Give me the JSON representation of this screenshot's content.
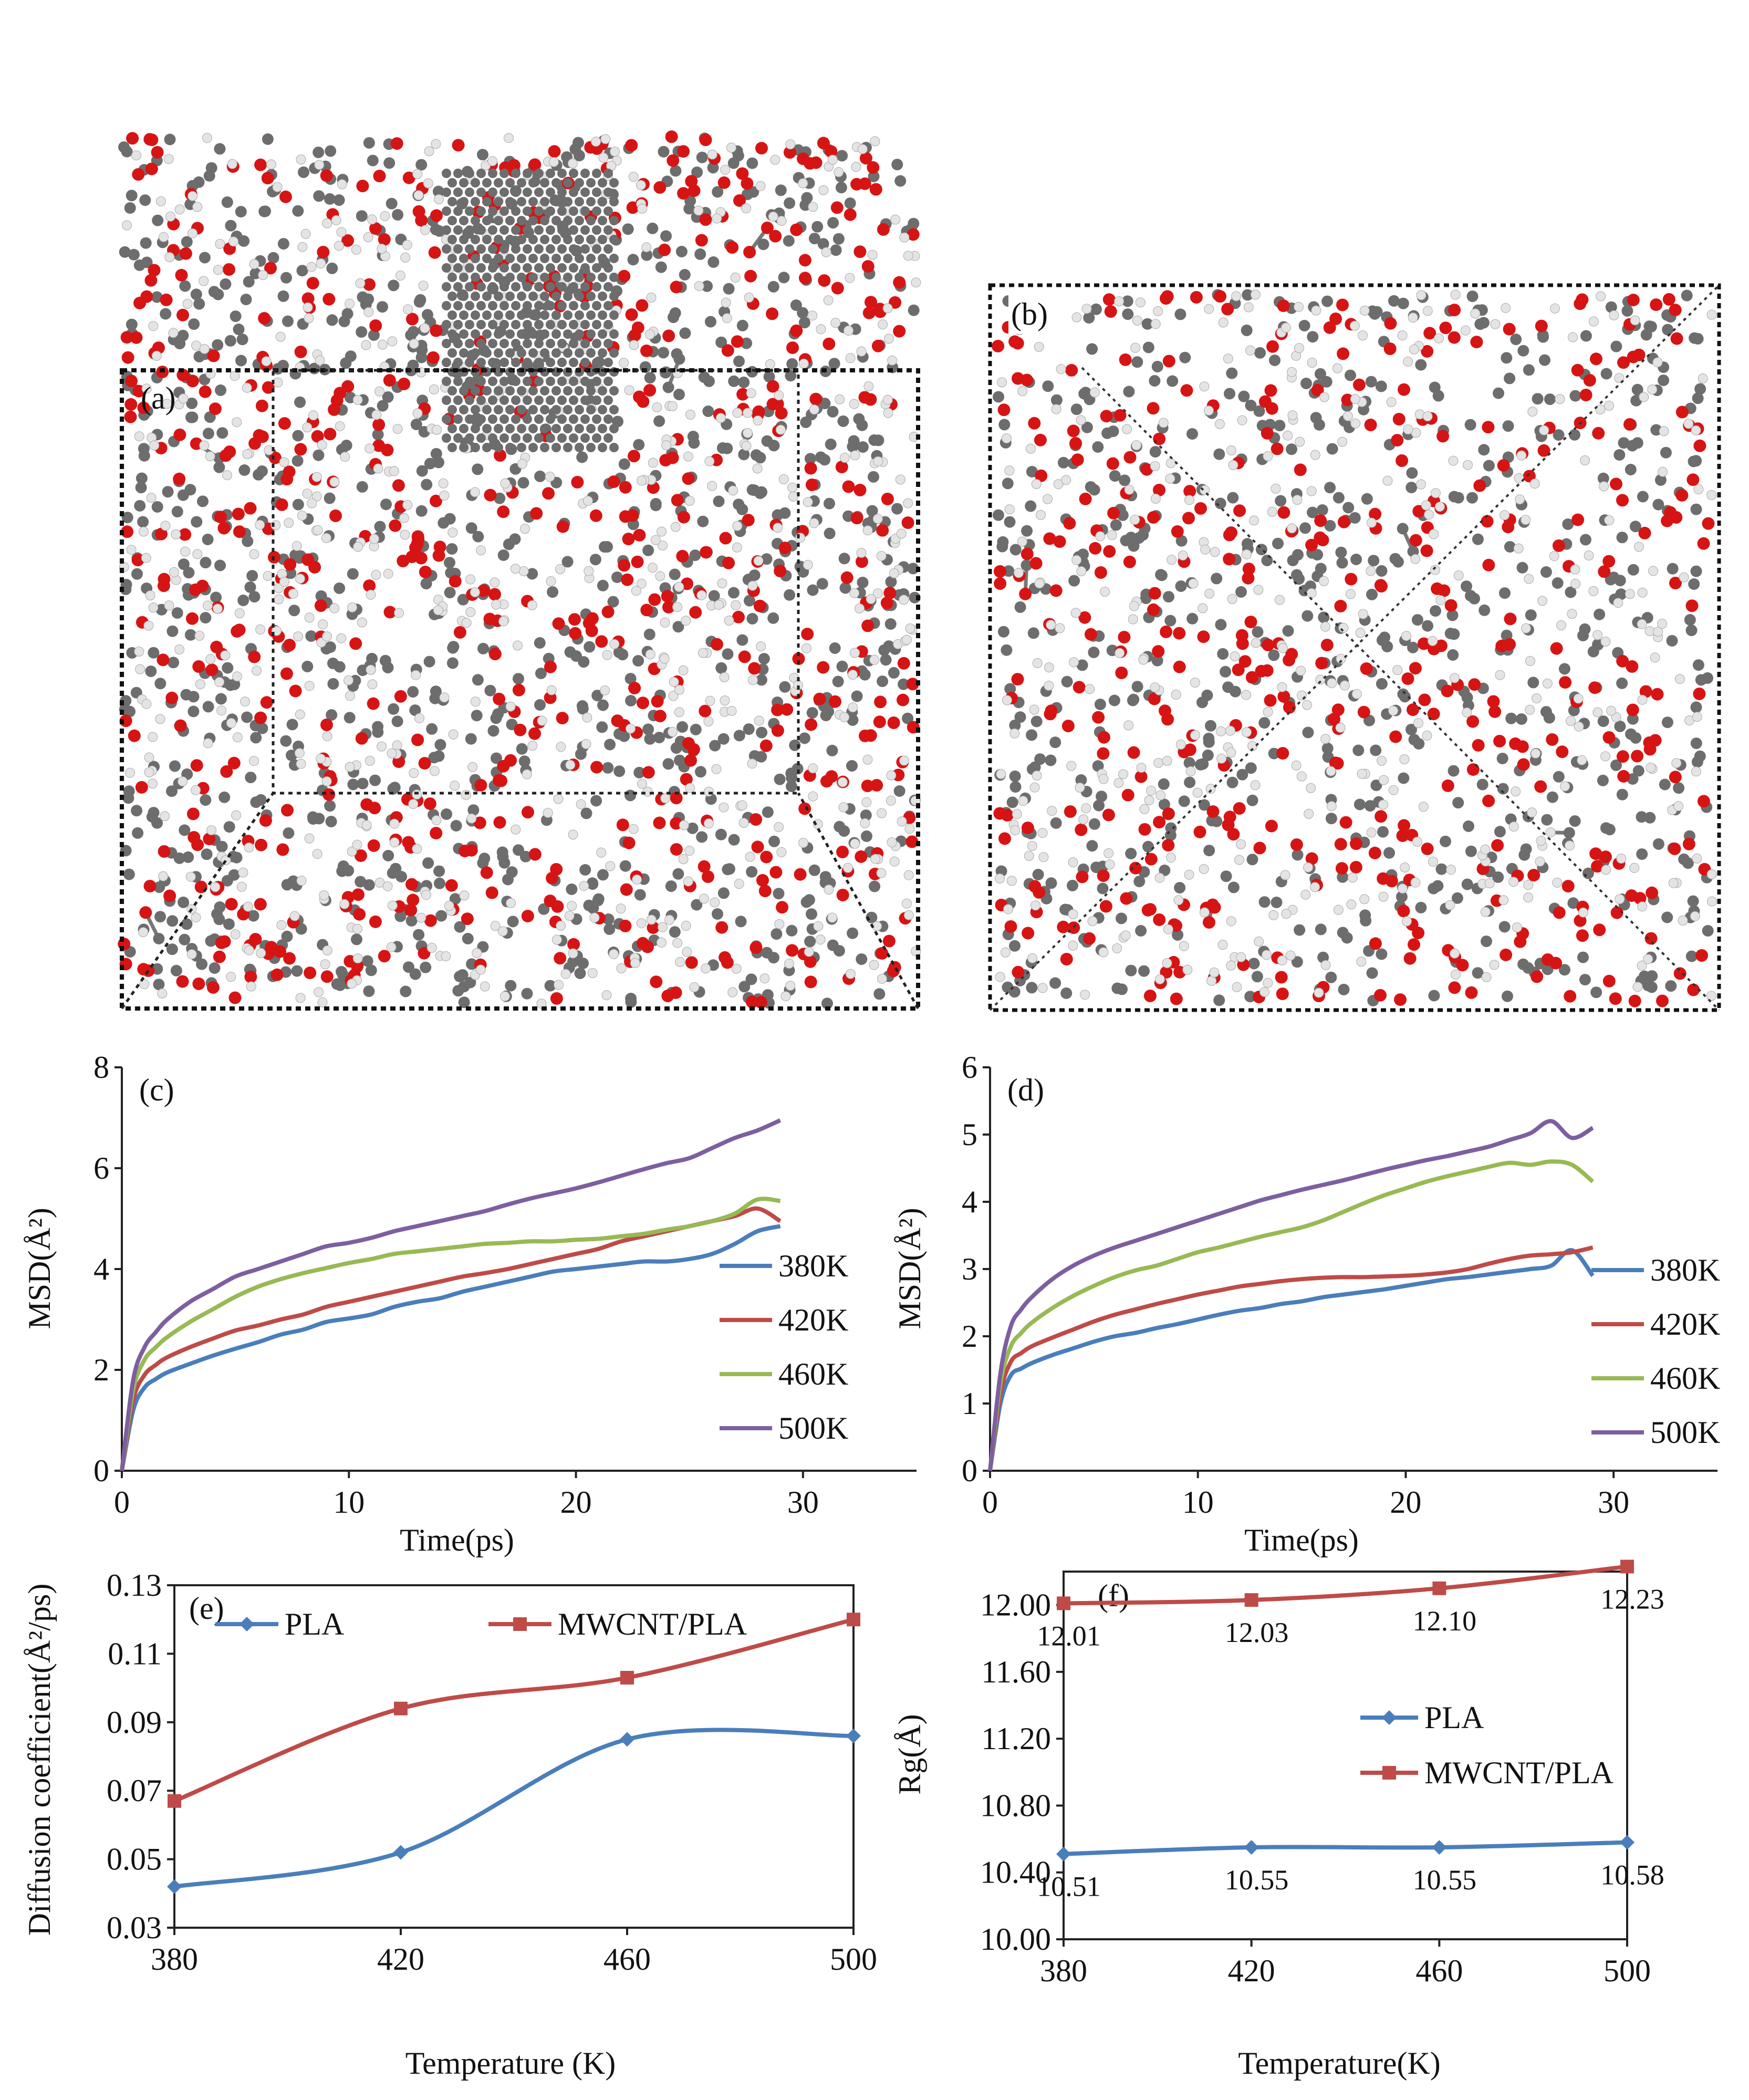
{
  "figure": {
    "panel_a_label": "(a)",
    "panel_b_label": "(b)",
    "panel_a_subject": "MWCNT/PLA molecular model",
    "panel_b_subject": "PLA molecular model"
  },
  "colors": {
    "carbon": "#6d6d6d",
    "oxygen": "#d71414",
    "hydrogen": "#e4e4e4",
    "series_380K": "#4a7ebb",
    "series_420K": "#be4b48",
    "series_460K": "#98b954",
    "series_500K": "#7d5fa0",
    "series_PLA": "#4a7ebb",
    "series_MWCNT_PLA": "#be4b48"
  },
  "chart_data": [
    {
      "id": "c",
      "type": "line",
      "panel_label": "(c)",
      "xlabel": "Time(ps)",
      "ylabel": "MSD(Å²)",
      "xlim": [
        0,
        35
      ],
      "ylim": [
        0,
        8
      ],
      "xticks": [
        0,
        10,
        20,
        30
      ],
      "yticks": [
        0,
        2,
        4,
        6,
        8
      ],
      "x": [
        0,
        0.5,
        1,
        1.5,
        2,
        3,
        4,
        5,
        6,
        7,
        8,
        9,
        10,
        11,
        12,
        13,
        14,
        15,
        16,
        17,
        18,
        19,
        20,
        21,
        22,
        23,
        24,
        25,
        26,
        27,
        28,
        29
      ],
      "series": [
        {
          "name": "380K",
          "values": [
            0,
            1.2,
            1.65,
            1.82,
            1.95,
            2.12,
            2.28,
            2.42,
            2.55,
            2.7,
            2.8,
            2.95,
            3.02,
            3.1,
            3.25,
            3.35,
            3.42,
            3.55,
            3.65,
            3.75,
            3.85,
            3.95,
            4.0,
            4.05,
            4.1,
            4.15,
            4.15,
            4.2,
            4.3,
            4.5,
            4.75,
            4.85
          ]
        },
        {
          "name": "420K",
          "values": [
            0,
            1.4,
            1.9,
            2.1,
            2.25,
            2.45,
            2.62,
            2.78,
            2.88,
            3.0,
            3.1,
            3.25,
            3.35,
            3.45,
            3.55,
            3.65,
            3.75,
            3.85,
            3.92,
            4.0,
            4.1,
            4.2,
            4.3,
            4.4,
            4.55,
            4.65,
            4.75,
            4.85,
            4.95,
            5.05,
            5.2,
            4.95
          ]
        },
        {
          "name": "460K",
          "values": [
            0,
            1.6,
            2.2,
            2.45,
            2.65,
            2.95,
            3.2,
            3.45,
            3.65,
            3.8,
            3.92,
            4.02,
            4.12,
            4.2,
            4.3,
            4.35,
            4.4,
            4.45,
            4.5,
            4.52,
            4.55,
            4.55,
            4.58,
            4.6,
            4.65,
            4.7,
            4.78,
            4.85,
            4.95,
            5.1,
            5.38,
            5.35
          ]
        },
        {
          "name": "500K",
          "values": [
            0,
            1.8,
            2.45,
            2.75,
            3.0,
            3.35,
            3.6,
            3.85,
            4.0,
            4.15,
            4.3,
            4.45,
            4.52,
            4.62,
            4.75,
            4.85,
            4.95,
            5.05,
            5.15,
            5.28,
            5.4,
            5.5,
            5.6,
            5.72,
            5.85,
            5.98,
            6.1,
            6.2,
            6.4,
            6.6,
            6.75,
            6.95
          ]
        }
      ],
      "legend": [
        "380K",
        "420K",
        "460K",
        "500K"
      ],
      "legend_position": "right"
    },
    {
      "id": "d",
      "type": "line",
      "panel_label": "(d)",
      "xlabel": "Time(ps)",
      "ylabel": "MSD(Å²)",
      "xlim": [
        0,
        35
      ],
      "ylim": [
        0,
        6
      ],
      "xticks": [
        0,
        10,
        20,
        30
      ],
      "yticks": [
        0,
        1,
        2,
        3,
        4,
        5,
        6
      ],
      "x": [
        0,
        0.5,
        1,
        1.5,
        2,
        3,
        4,
        5,
        6,
        7,
        8,
        9,
        10,
        11,
        12,
        13,
        14,
        15,
        16,
        17,
        18,
        19,
        20,
        21,
        22,
        23,
        24,
        25,
        26,
        27,
        28,
        29
      ],
      "series": [
        {
          "name": "380K",
          "values": [
            0,
            1.0,
            1.42,
            1.52,
            1.6,
            1.72,
            1.82,
            1.92,
            2.0,
            2.05,
            2.12,
            2.18,
            2.25,
            2.32,
            2.38,
            2.42,
            2.48,
            2.52,
            2.58,
            2.62,
            2.66,
            2.7,
            2.75,
            2.8,
            2.85,
            2.88,
            2.92,
            2.96,
            3.0,
            3.05,
            3.28,
            2.9
          ]
        },
        {
          "name": "420K",
          "values": [
            0,
            1.15,
            1.62,
            1.75,
            1.85,
            1.98,
            2.1,
            2.22,
            2.32,
            2.4,
            2.48,
            2.55,
            2.62,
            2.68,
            2.74,
            2.78,
            2.82,
            2.85,
            2.87,
            2.88,
            2.88,
            2.89,
            2.9,
            2.92,
            2.95,
            3.0,
            3.08,
            3.15,
            3.2,
            3.22,
            3.25,
            3.32
          ]
        },
        {
          "name": "460K",
          "values": [
            0,
            1.3,
            1.85,
            2.05,
            2.2,
            2.42,
            2.6,
            2.75,
            2.88,
            2.98,
            3.05,
            3.15,
            3.25,
            3.32,
            3.4,
            3.48,
            3.55,
            3.62,
            3.72,
            3.85,
            3.98,
            4.1,
            4.2,
            4.3,
            4.38,
            4.45,
            4.52,
            4.58,
            4.55,
            4.6,
            4.55,
            4.3
          ]
        },
        {
          "name": "500K",
          "values": [
            0,
            1.45,
            2.15,
            2.4,
            2.58,
            2.85,
            3.05,
            3.2,
            3.32,
            3.42,
            3.52,
            3.62,
            3.72,
            3.82,
            3.92,
            4.02,
            4.1,
            4.18,
            4.25,
            4.32,
            4.4,
            4.48,
            4.55,
            4.62,
            4.68,
            4.75,
            4.82,
            4.92,
            5.02,
            5.2,
            4.95,
            5.1
          ]
        }
      ],
      "legend": [
        "380K",
        "420K",
        "460K",
        "500K"
      ],
      "legend_position": "right"
    },
    {
      "id": "e",
      "type": "line",
      "panel_label": "(e)",
      "xlabel": "Temperature (K)",
      "ylabel": "Diffusion coefficient(Å²/ps)",
      "xlim": [
        380,
        500
      ],
      "ylim": [
        0.03,
        0.13
      ],
      "xticks": [
        380,
        420,
        460,
        500
      ],
      "yticks": [
        0.03,
        0.05,
        0.07,
        0.09,
        0.11,
        0.13
      ],
      "ytick_labels": [
        "0.03",
        "0.05",
        "0.07",
        "0.09",
        "0.11",
        "0.13"
      ],
      "categories": [
        380,
        420,
        460,
        500
      ],
      "series": [
        {
          "name": "PLA",
          "marker": "diamond",
          "values": [
            0.042,
            0.052,
            0.085,
            0.086
          ]
        },
        {
          "name": "MWCNT/PLA",
          "marker": "square",
          "values": [
            0.067,
            0.094,
            0.103,
            0.12
          ]
        }
      ],
      "legend": [
        "PLA",
        "MWCNT/PLA"
      ],
      "legend_position": "top"
    },
    {
      "id": "f",
      "type": "line",
      "panel_label": "(f)",
      "xlabel": "Temperature(K)",
      "ylabel": "Rg(Å)",
      "xlim": [
        380,
        500
      ],
      "ylim": [
        10.0,
        12.2
      ],
      "xticks": [
        380,
        420,
        460,
        500
      ],
      "yticks": [
        10.0,
        10.4,
        10.8,
        11.2,
        11.6,
        12.0
      ],
      "ytick_labels": [
        "10.00",
        "10.40",
        "10.80",
        "11.20",
        "11.60",
        "12.00"
      ],
      "categories": [
        380,
        420,
        460,
        500
      ],
      "series": [
        {
          "name": "PLA",
          "marker": "diamond",
          "values": [
            10.51,
            10.55,
            10.55,
            10.58
          ],
          "data_labels": [
            "10.51",
            "10.55",
            "10.55",
            "10.58"
          ]
        },
        {
          "name": "MWCNT/PLA",
          "marker": "square",
          "values": [
            12.01,
            12.03,
            12.1,
            12.23
          ],
          "data_labels": [
            "12.01",
            "12.03",
            "12.10",
            "12.23"
          ]
        }
      ],
      "legend": [
        "PLA",
        "MWCNT/PLA"
      ],
      "legend_position": "center-right"
    }
  ]
}
